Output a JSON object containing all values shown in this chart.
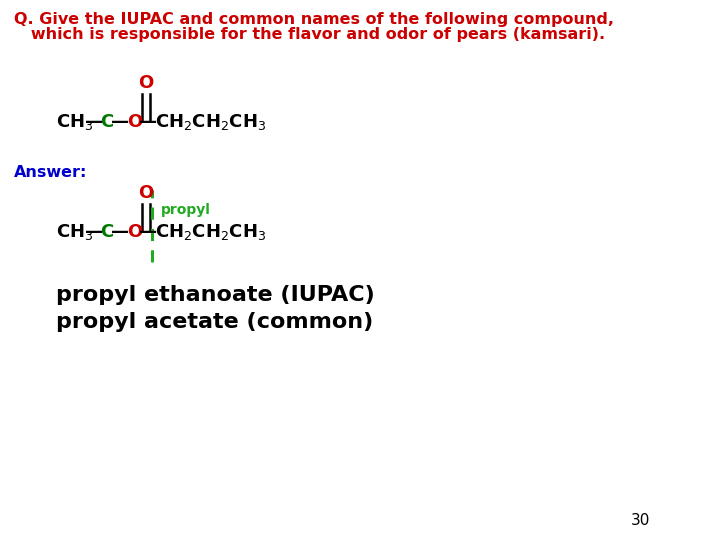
{
  "background_color": "#ffffff",
  "question_line1": "Q. Give the IUPAC and common names of the following compound,",
  "question_line2": "   which is responsible for the flavor and odor of pears (kamsari).",
  "question_color": "#cc0000",
  "question_fontsize": 11.5,
  "answer_label": "Answer:",
  "answer_color": "#0000cc",
  "answer_fontsize": 11.5,
  "iupac_line": "propyl ethanoate (IUPAC)",
  "common_line": "propyl acetate (common)",
  "names_color": "#000000",
  "names_fontsize": 16,
  "page_number": "30",
  "page_color": "#000000",
  "page_fontsize": 11,
  "green_line_color": "#22aa22",
  "C_color": "#007700",
  "O_red_color": "#cc0000",
  "bond_color": "#000000"
}
